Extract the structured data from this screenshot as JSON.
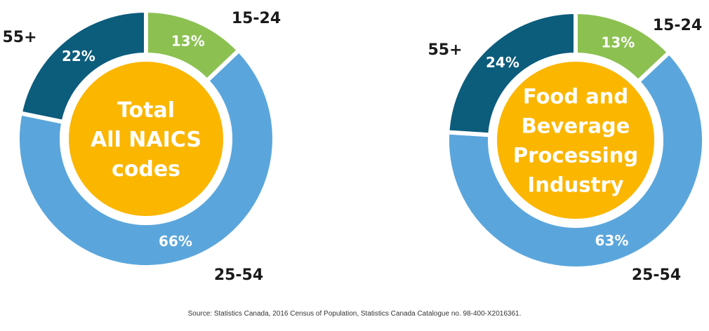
{
  "chart_data": [
    {
      "type": "pie",
      "donut": true,
      "center_label": [
        "Total",
        "All NAICS",
        "codes"
      ],
      "categories": [
        "15-24",
        "25-54",
        "55+"
      ],
      "values": [
        13,
        66,
        22
      ],
      "value_labels": [
        "13%",
        "66%",
        "22%"
      ],
      "colors": [
        "#8cc152",
        "#5aa6dc",
        "#0c5c7c"
      ],
      "center_color": "#fbb600"
    },
    {
      "type": "pie",
      "donut": true,
      "center_label": [
        "Food and",
        "Beverage",
        "Processing",
        "Industry"
      ],
      "categories": [
        "15-24",
        "25-54",
        "55+"
      ],
      "values": [
        13,
        63,
        24
      ],
      "value_labels": [
        "13%",
        "63%",
        "24%"
      ],
      "colors": [
        "#8cc152",
        "#5aa6dc",
        "#0c5c7c"
      ],
      "center_color": "#fbb600"
    }
  ],
  "source": "Source: Statistics Canada, 2016 Census of Population, Statistics Canada Catalogue no. 98-400-X2016361."
}
